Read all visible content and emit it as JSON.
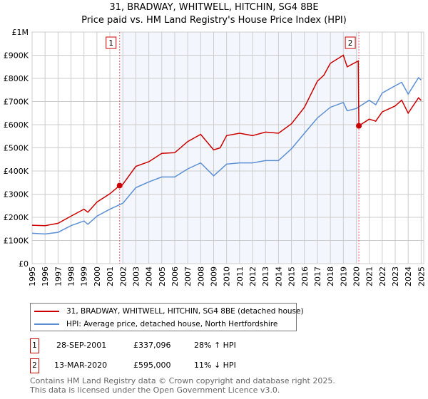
{
  "chart_data": {
    "type": "line",
    "title": "31, BRADWAY, WHITWELL, HITCHIN, SG4 8BE",
    "subtitle": "Price paid vs. HM Land Registry's House Price Index (HPI)",
    "xlim": [
      1995,
      2025.2
    ],
    "ylim": [
      0,
      1000000
    ],
    "x_ticks": [
      "1995",
      "1996",
      "1997",
      "1998",
      "1999",
      "2000",
      "2001",
      "2002",
      "2003",
      "2004",
      "2005",
      "2006",
      "2007",
      "2008",
      "2009",
      "2010",
      "2011",
      "2012",
      "2013",
      "2014",
      "2015",
      "2016",
      "2017",
      "2018",
      "2019",
      "2020",
      "2021",
      "2022",
      "2023",
      "2024",
      "2025"
    ],
    "y_ticks": [
      {
        "v": 0,
        "label": "£0"
      },
      {
        "v": 100000,
        "label": "£100K"
      },
      {
        "v": 200000,
        "label": "£200K"
      },
      {
        "v": 300000,
        "label": "£300K"
      },
      {
        "v": 400000,
        "label": "£400K"
      },
      {
        "v": 500000,
        "label": "£500K"
      },
      {
        "v": 600000,
        "label": "£600K"
      },
      {
        "v": 700000,
        "label": "£700K"
      },
      {
        "v": 800000,
        "label": "£800K"
      },
      {
        "v": 900000,
        "label": "£900K"
      },
      {
        "v": 1000000,
        "label": "£1M"
      }
    ],
    "grid": true,
    "shaded_range": [
      2001.75,
      2020.2
    ],
    "series": [
      {
        "name": "31, BRADWAY, WHITWELL, HITCHIN, SG4 8BE (detached house)",
        "color": "#cc0000",
        "x": [
          1995,
          1996,
          1997,
          1998,
          1999,
          1999.3,
          2000,
          2001,
          2001.75,
          2002,
          2003,
          2004,
          2005,
          2006,
          2007,
          2008,
          2009,
          2009.5,
          2010,
          2011,
          2012,
          2013,
          2014,
          2015,
          2016,
          2017,
          2017.5,
          2018,
          2019,
          2019.3,
          2020.15,
          2020.2,
          2021,
          2021.5,
          2022,
          2023,
          2023.5,
          2024,
          2024.8,
          2025
        ],
        "values": [
          166000,
          164000,
          174000,
          205000,
          235000,
          222000,
          266000,
          302000,
          337096,
          343000,
          420000,
          440000,
          476000,
          479000,
          527000,
          558000,
          491000,
          500000,
          553000,
          563000,
          553000,
          568000,
          563000,
          604000,
          675000,
          788000,
          814000,
          865000,
          900000,
          850000,
          875000,
          595000,
          624000,
          615000,
          655000,
          681000,
          706000,
          650000,
          716000,
          705000
        ]
      },
      {
        "name": "HPI: Average price, detached house, North Hertfordshire",
        "color": "#5b8fd4",
        "x": [
          1995,
          1996,
          1997,
          1998,
          1999,
          1999.3,
          2000,
          2001,
          2002,
          2003,
          2004,
          2005,
          2006,
          2007,
          2008,
          2009,
          2010,
          2011,
          2012,
          2013,
          2014,
          2015,
          2016,
          2017,
          2018,
          2019,
          2019.3,
          2020,
          2021,
          2021.5,
          2022,
          2023,
          2023.5,
          2024,
          2024.8,
          2025
        ],
        "values": [
          131000,
          128000,
          135000,
          164000,
          184000,
          170000,
          205000,
          235000,
          261000,
          328000,
          353000,
          374000,
          374000,
          409000,
          435000,
          379000,
          430000,
          435000,
          435000,
          445000,
          445000,
          496000,
          563000,
          629000,
          675000,
          696000,
          660000,
          670000,
          706000,
          686000,
          737000,
          768000,
          783000,
          732000,
          803000,
          793000
        ]
      }
    ],
    "sales": [
      {
        "label": "1",
        "x": 2001.75,
        "value": 337096
      },
      {
        "label": "2",
        "x": 2020.2,
        "value": 595000
      }
    ]
  },
  "legend": {
    "items": [
      "31, BRADWAY, WHITWELL, HITCHIN, SG4 8BE (detached house)",
      "HPI: Average price, detached house, North Hertfordshire"
    ]
  },
  "table": [
    {
      "num": "1",
      "date": "28-SEP-2001",
      "price": "£337,096",
      "hpi": "28% ↑ HPI"
    },
    {
      "num": "2",
      "date": "13-MAR-2020",
      "price": "£595,000",
      "hpi": "11% ↓ HPI"
    }
  ],
  "footer": {
    "line1": "Contains HM Land Registry data © Crown copyright and database right 2025.",
    "line2": "This data is licensed under the Open Government Licence v3.0."
  }
}
